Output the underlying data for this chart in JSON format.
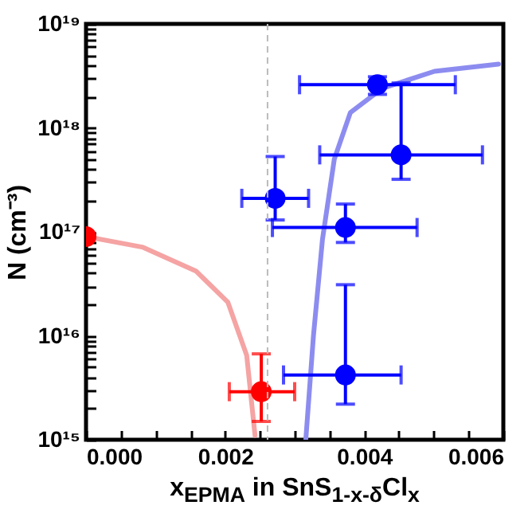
{
  "chart_data": {
    "type": "scatter",
    "xlabel": "x$_{EPMA}$ in SnS$_{1-x-δ}$Cl$_{x}$",
    "ylabel": "N (cm⁻³)",
    "log": "y",
    "xlim": [
      0,
      0.006
    ],
    "ylim": [
      1000000000000000.0,
      1e+19
    ],
    "xticks": [
      {
        "value": 0,
        "label": "0.000"
      },
      {
        "value": 0.0005,
        "label": null
      },
      {
        "value": 0.001,
        "label": null
      },
      {
        "value": 0.0015,
        "label": null
      },
      {
        "value": 0.002,
        "label": "0.002"
      },
      {
        "value": 0.0025,
        "label": null
      },
      {
        "value": 0.003,
        "label": null
      },
      {
        "value": 0.0035,
        "label": null
      },
      {
        "value": 0.004,
        "label": "0.004"
      },
      {
        "value": 0.0045,
        "label": null
      },
      {
        "value": 0.005,
        "label": null
      },
      {
        "value": 0.0055,
        "label": null
      },
      {
        "value": 0.006,
        "label": "0.006"
      }
    ],
    "yticks": [
      {
        "value": 1000000000000000.0,
        "label": "10¹⁵"
      },
      {
        "value": 2000000000000000.0,
        "label": null
      },
      {
        "value": 3000000000000000.0,
        "label": null
      },
      {
        "value": 4000000000000000.0,
        "label": null
      },
      {
        "value": 5000000000000000.0,
        "label": null
      },
      {
        "value": 6000000000000000.0,
        "label": null
      },
      {
        "value": 7000000000000000.0,
        "label": null
      },
      {
        "value": 8000000000000000.0,
        "label": null
      },
      {
        "value": 9000000000000000.0,
        "label": null
      },
      {
        "value": 1e+16,
        "label": "10¹⁶"
      },
      {
        "value": 2e+16,
        "label": null
      },
      {
        "value": 3e+16,
        "label": null
      },
      {
        "value": 4e+16,
        "label": null
      },
      {
        "value": 5e+16,
        "label": null
      },
      {
        "value": 6e+16,
        "label": null
      },
      {
        "value": 7e+16,
        "label": null
      },
      {
        "value": 8e+16,
        "label": null
      },
      {
        "value": 9e+16,
        "label": null
      },
      {
        "value": 1e+17,
        "label": "10¹⁷"
      },
      {
        "value": 2e+17,
        "label": null
      },
      {
        "value": 3e+17,
        "label": null
      },
      {
        "value": 4e+17,
        "label": null
      },
      {
        "value": 5e+17,
        "label": null
      },
      {
        "value": 6e+17,
        "label": null
      },
      {
        "value": 7e+17,
        "label": null
      },
      {
        "value": 8e+17,
        "label": null
      },
      {
        "value": 9e+17,
        "label": null
      },
      {
        "value": 1e+18,
        "label": "10¹⁸"
      },
      {
        "value": 2e+18,
        "label": null
      },
      {
        "value": 3e+18,
        "label": null
      },
      {
        "value": 4e+18,
        "label": null
      },
      {
        "value": 5e+18,
        "label": null
      },
      {
        "value": 6e+18,
        "label": null
      },
      {
        "value": 7e+18,
        "label": null
      },
      {
        "value": 8e+18,
        "label": null
      },
      {
        "value": 9e+18,
        "label": null
      },
      {
        "value": 1e+19,
        "label": "10¹⁹"
      }
    ],
    "grid": false,
    "legend": false,
    "marker": "circle",
    "ref_lines": [
      {
        "axis": "x",
        "value": 0.00261,
        "color": "#bbbbbb",
        "line_style": "dashed"
      }
    ],
    "series": [
      {
        "type": "line",
        "color": "#f5a3a3",
        "line_style": "solid",
        "marker": "none",
        "x": [
          0,
          0.00082,
          0.00158,
          0.00204,
          0.00231,
          0.00243
        ],
        "values": [
          9e+16,
          7.1e+16,
          4.2e+16,
          2.1e+16,
          6500000000000000.0,
          1100000000000000.0
        ]
      },
      {
        "type": "line",
        "color": "#8c8cf0",
        "line_style": "solid",
        "marker": "none",
        "x": [
          0.00316,
          0.00327,
          0.0034,
          0.00357,
          0.0038,
          0.00426,
          0.00501,
          0.00593
        ],
        "values": [
          1000000000000000.0,
          1e+16,
          8.5e+16,
          5e+17,
          1.4e+18,
          2.4e+18,
          3.5e+18,
          4.1e+18
        ]
      },
      {
        "type": "scatter",
        "color": "#ff0000",
        "x": [
          0,
          0.00252
        ],
        "values": [
          9e+16,
          2900000000000000.0
        ],
        "errors": [
          null,
          [
            1500000000000000.0,
            6700000000000000.0
          ]
        ],
        "xerrors": [
          null,
          [
            0.00206,
            0.003
          ]
        ]
      },
      {
        "type": "scatter",
        "color": "#0000ff",
        "x": [
          0.00272,
          0.00373,
          0.00373,
          0.00419,
          0.00453
        ],
        "values": [
          2.1e+17,
          1.1e+17,
          4200000000000000.0,
          2.6e+18,
          5.5e+17
        ],
        "errors": [
          [
            1.3e+17,
            5.3e+17
          ],
          [
            7.9e+16,
            1.85e+17
          ],
          [
            2200000000000000.0,
            3.1e+16
          ],
          [
            2.1e+18,
            3.1e+18
          ],
          [
            3.2e+17,
            2.7e+18
          ]
        ],
        "xerrors": [
          [
            0.00224,
            0.0032
          ],
          [
            0.00268,
            0.00476
          ],
          [
            0.00284,
            0.00453
          ],
          [
            0.00307,
            0.00531
          ],
          [
            0.00336,
            0.0057
          ]
        ]
      }
    ]
  }
}
